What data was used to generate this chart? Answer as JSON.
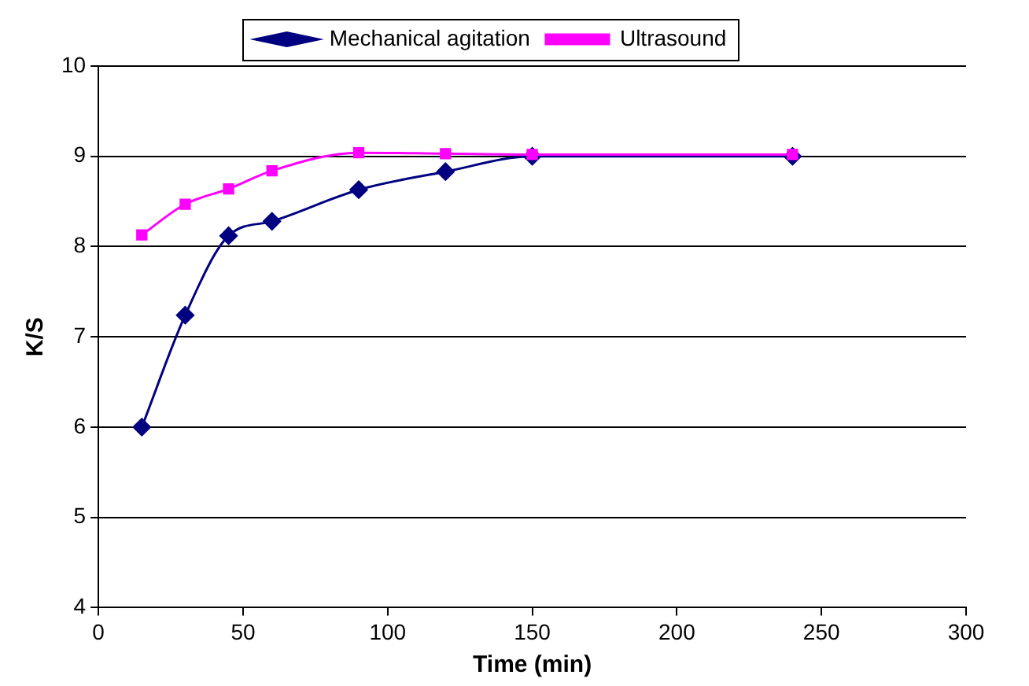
{
  "chart_data": {
    "type": "line",
    "xlabel": "Time (min)",
    "ylabel": "K/S",
    "x": [
      15,
      30,
      45,
      60,
      90,
      120,
      150,
      240
    ],
    "series": [
      {
        "name": "Mechanical agitation",
        "color": "#000080",
        "marker": "diamond",
        "values": [
          6.0,
          7.24,
          8.12,
          8.28,
          8.63,
          8.83,
          9.0,
          9.0
        ]
      },
      {
        "name": "Ultrasound",
        "color": "#ff00ff",
        "marker": "square",
        "values": [
          8.13,
          8.47,
          8.64,
          8.84,
          9.04,
          9.03,
          9.02,
          9.02
        ]
      }
    ],
    "xlim": [
      0,
      300
    ],
    "xticks": [
      0,
      50,
      100,
      150,
      200,
      250,
      300
    ],
    "ylim": [
      4,
      10
    ],
    "yticks": [
      4,
      5,
      6,
      7,
      8,
      9,
      10
    ],
    "grid": "y",
    "legend": "top"
  }
}
